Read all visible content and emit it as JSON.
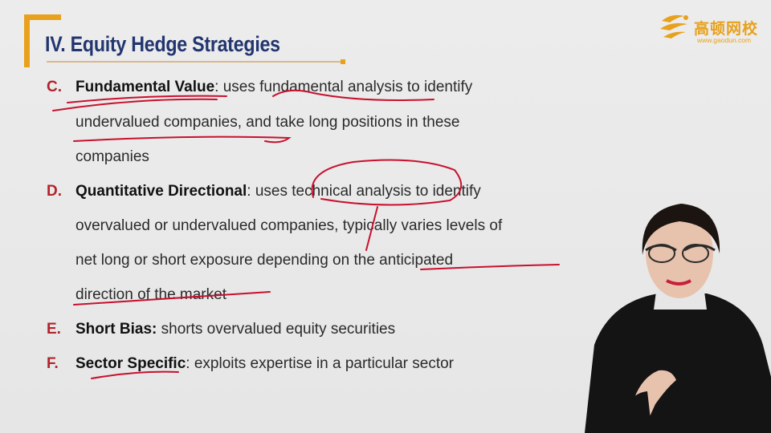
{
  "logo": {
    "name": "高顿网校",
    "url": "www.gaodun.com"
  },
  "slide": {
    "title": "IV. Equity Hedge Strategies",
    "items": [
      {
        "letter": "C.",
        "term": "Fundamental Value",
        "lines": [
          ": uses fundamental analysis to identify",
          "undervalued companies, and take long positions in these",
          "companies"
        ]
      },
      {
        "letter": "D.",
        "term": "Quantitative Directional",
        "lines": [
          ": uses technical analysis to identify",
          "overvalued or undervalued companies, typically varies levels of",
          "net long or short exposure depending on the anticipated",
          "direction of the market"
        ]
      },
      {
        "letter": "E.",
        "term": "Short Bias:",
        "lines": [
          " shorts overvalued equity securities"
        ]
      },
      {
        "letter": "F.",
        "term": "Sector Specific",
        "lines": [
          ": exploits expertise in a particular sector"
        ]
      }
    ]
  },
  "colors": {
    "accent_orange": "#e8a11c",
    "title_navy": "#22356f",
    "letter_red": "#b3232a",
    "ink_red": "#c8102e"
  }
}
